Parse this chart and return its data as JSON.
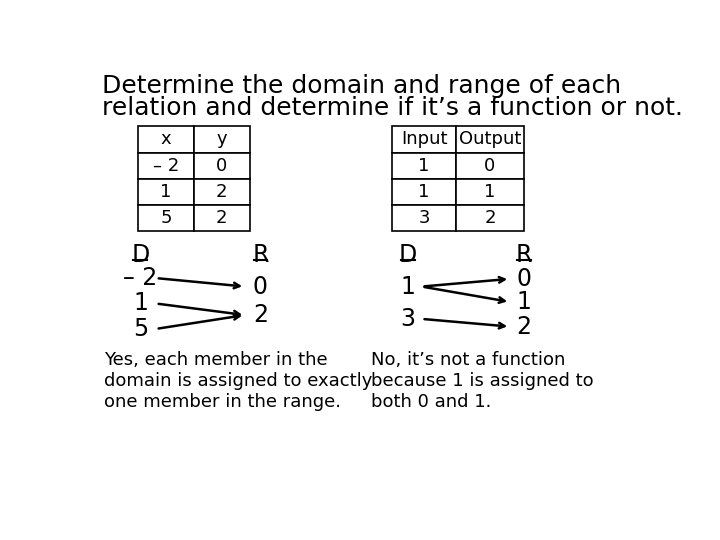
{
  "title_line1": "Determine the domain and range of each",
  "title_line2": "relation and determine if it’s a function or not.",
  "bg_color": "#ffffff",
  "table1": {
    "headers": [
      "x",
      "y"
    ],
    "rows": [
      [
        "– 2",
        "0"
      ],
      [
        "1",
        "2"
      ],
      [
        "5",
        "2"
      ]
    ]
  },
  "table2": {
    "headers": [
      "Input",
      "Output"
    ],
    "rows": [
      [
        "1",
        "0"
      ],
      [
        "1",
        "1"
      ],
      [
        "3",
        "2"
      ]
    ]
  },
  "left_mapping": {
    "domain": [
      "– 2",
      "1",
      "5"
    ],
    "range": [
      "0",
      "2"
    ],
    "arrows": [
      [
        0,
        0
      ],
      [
        1,
        1
      ],
      [
        2,
        1
      ]
    ]
  },
  "right_mapping": {
    "domain": [
      "1",
      "3"
    ],
    "range": [
      "0",
      "1",
      "2"
    ],
    "arrows": [
      [
        0,
        0
      ],
      [
        0,
        1
      ],
      [
        1,
        2
      ]
    ]
  },
  "left_text": "Yes, each member in the\ndomain is assigned to exactly\none member in the range.",
  "right_text": "No, it’s not a function\nbecause 1 is assigned to\nboth 0 and 1.",
  "font_size_title": 18,
  "font_size_body": 13,
  "font_size_label": 17,
  "font_size_table": 13
}
